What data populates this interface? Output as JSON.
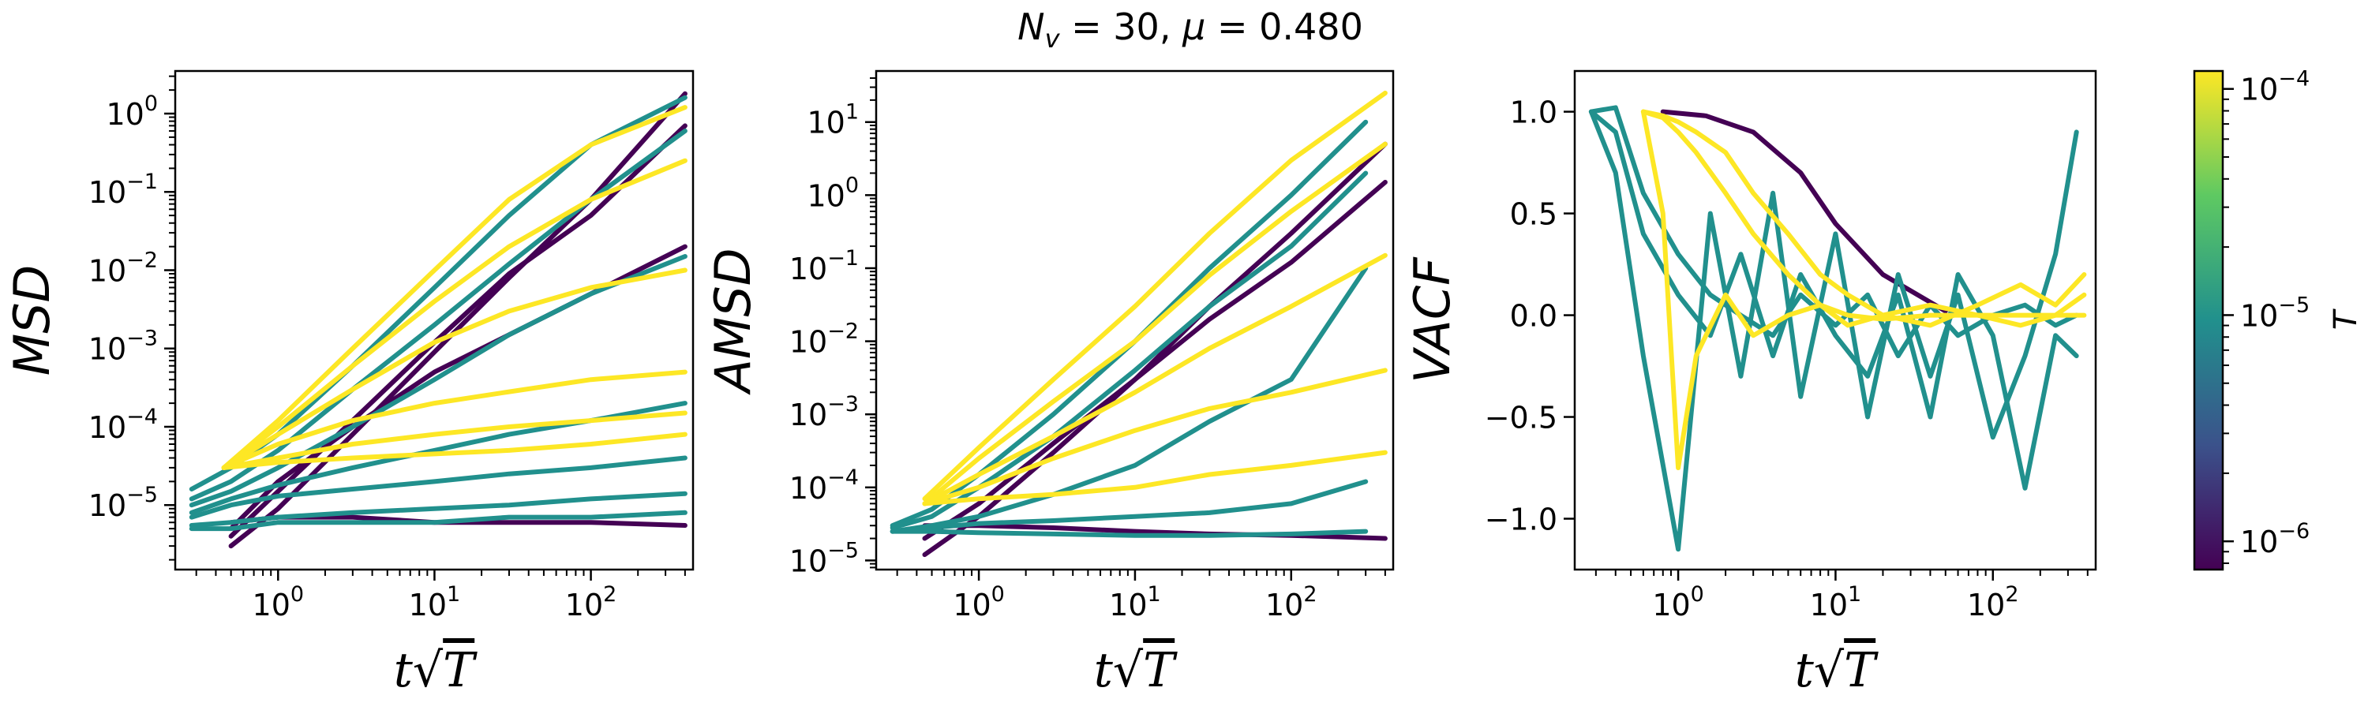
{
  "suptitle": {
    "n_symbol": "N",
    "n_sub": "v",
    "n_value": " = 30, ",
    "mu_symbol": "μ",
    "mu_value": " = 0.480"
  },
  "colors": {
    "dark_purple": "#440154",
    "teal": "#21908d",
    "teal_light": "#1f9e89",
    "yellow": "#fde725",
    "yellow_green": "#d8e219"
  },
  "chart_data": [
    {
      "type": "line",
      "panel": "msd",
      "ylabel": "MSD",
      "xlabel_t": "t",
      "xlabel_T": "T",
      "xscale": "log",
      "yscale": "log",
      "xlim": [
        0.22,
        450
      ],
      "ylim": [
        1.5e-06,
        3.5
      ],
      "x_ticks": [
        1,
        10,
        100
      ],
      "x_tick_base": "10",
      "x_tick_exps": [
        "0",
        "1",
        "2"
      ],
      "y_ticks": [
        1e-05,
        0.0001,
        0.001,
        0.01,
        0.1,
        1
      ],
      "y_tick_base": "10",
      "y_tick_exps": [
        "−5",
        "−4",
        "−3",
        "−2",
        "−1",
        "0"
      ],
      "series_groups": [
        {
          "color": "#440154",
          "x": [
            0.5,
            1,
            3,
            10,
            30,
            100,
            400
          ],
          "lines": [
            [
              3e-06,
              9e-06,
              8e-05,
              0.0009,
              0.008,
              0.08,
              1.8
            ],
            [
              4e-06,
              1.5e-05,
              0.00012,
              0.0012,
              0.009,
              0.05,
              0.7
            ],
            [
              5e-06,
              2e-05,
              0.0001,
              0.0005,
              0.0015,
              0.005,
              0.02
            ],
            [
              6e-06,
              7e-06,
              7e-06,
              6e-06,
              6e-06,
              6e-06,
              5.5e-06
            ]
          ]
        },
        {
          "color": "#21908d",
          "x": [
            0.28,
            0.5,
            1,
            3,
            10,
            30,
            100,
            400
          ],
          "lines": [
            [
              1.6e-05,
              3e-05,
              8e-05,
              0.0006,
              0.006,
              0.05,
              0.4,
              1.6
            ],
            [
              1.2e-05,
              2e-05,
              5e-05,
              0.0003,
              0.002,
              0.012,
              0.08,
              0.6
            ],
            [
              1e-05,
              1.5e-05,
              3e-05,
              0.0001,
              0.0004,
              0.0015,
              0.005,
              0.015
            ],
            [
              8e-06,
              1.2e-05,
              1.8e-05,
              3e-05,
              5e-05,
              8e-05,
              0.00012,
              0.0002
            ],
            [
              7e-06,
              1e-05,
              1.3e-05,
              1.6e-05,
              2e-05,
              2.5e-05,
              3e-05,
              4e-05
            ],
            [
              5.5e-06,
              6e-06,
              7e-06,
              8e-06,
              9e-06,
              1e-05,
              1.2e-05,
              1.4e-05
            ],
            [
              5e-06,
              5e-06,
              6e-06,
              6e-06,
              6e-06,
              7e-06,
              7e-06,
              8e-06
            ]
          ]
        },
        {
          "color": "#fde725",
          "x": [
            0.45,
            1,
            3,
            10,
            30,
            100,
            400
          ],
          "lines": [
            [
              3e-05,
              0.00012,
              0.001,
              0.01,
              0.08,
              0.4,
              1.2
            ],
            [
              3e-05,
              0.0001,
              0.0006,
              0.004,
              0.02,
              0.08,
              0.25
            ],
            [
              3e-05,
              8e-05,
              0.0003,
              0.0012,
              0.003,
              0.006,
              0.01
            ],
            [
              3e-05,
              6e-05,
              0.00012,
              0.0002,
              0.00028,
              0.0004,
              0.0005
            ],
            [
              3e-05,
              4e-05,
              6e-05,
              8e-05,
              0.0001,
              0.00012,
              0.00015
            ],
            [
              3e-05,
              3.5e-05,
              4e-05,
              4.5e-05,
              5e-05,
              6e-05,
              8e-05
            ]
          ]
        }
      ]
    },
    {
      "type": "line",
      "panel": "amsd",
      "ylabel": "AMSD",
      "xlabel_t": "t",
      "xlabel_T": "T",
      "xscale": "log",
      "yscale": "log",
      "xlim": [
        0.22,
        450
      ],
      "ylim": [
        7.5e-06,
        50
      ],
      "x_ticks": [
        1,
        10,
        100
      ],
      "x_tick_base": "10",
      "x_tick_exps": [
        "0",
        "1",
        "2"
      ],
      "y_ticks": [
        1e-05,
        0.0001,
        0.001,
        0.01,
        0.1,
        1,
        10
      ],
      "y_tick_base": "10",
      "y_tick_exps": [
        "−5",
        "−4",
        "−3",
        "−2",
        "−1",
        "0",
        "1"
      ],
      "series_groups": [
        {
          "color": "#440154",
          "x": [
            0.45,
            1,
            3,
            10,
            30,
            100,
            400
          ],
          "lines": [
            [
              1.2e-05,
              4e-05,
              0.0003,
              0.003,
              0.03,
              0.3,
              5
            ],
            [
              2e-05,
              6e-05,
              0.0004,
              0.003,
              0.02,
              0.12,
              1.5
            ],
            [
              3e-05,
              3e-05,
              2.8e-05,
              2.5e-05,
              2.3e-05,
              2.2e-05,
              2e-05
            ]
          ]
        },
        {
          "color": "#21908d",
          "x": [
            0.28,
            0.5,
            1,
            3,
            10,
            30,
            100,
            300
          ],
          "lines": [
            [
              3e-05,
              5e-05,
              0.00015,
              0.001,
              0.01,
              0.1,
              1,
              10
            ],
            [
              2.8e-05,
              4e-05,
              0.0001,
              0.0005,
              0.004,
              0.03,
              0.2,
              2
            ],
            [
              2.5e-05,
              3e-05,
              4e-05,
              8e-05,
              0.0002,
              0.0008,
              0.003,
              0.1
            ],
            [
              2.5e-05,
              2.8e-05,
              3.2e-05,
              3.5e-05,
              4e-05,
              4.5e-05,
              6e-05,
              0.00012
            ],
            [
              2.5e-05,
              2.5e-05,
              2.4e-05,
              2.3e-05,
              2.2e-05,
              2.2e-05,
              2.3e-05,
              2.5e-05
            ]
          ]
        },
        {
          "color": "#fde725",
          "x": [
            0.45,
            1,
            3,
            10,
            30,
            100,
            400
          ],
          "lines": [
            [
              7e-05,
              0.00035,
              0.003,
              0.03,
              0.3,
              3,
              25
            ],
            [
              6e-05,
              0.00025,
              0.0015,
              0.01,
              0.08,
              0.6,
              5
            ],
            [
              6e-05,
              0.00015,
              0.0005,
              0.002,
              0.008,
              0.03,
              0.15
            ],
            [
              6e-05,
              0.0001,
              0.00025,
              0.0006,
              0.0012,
              0.002,
              0.004
            ],
            [
              6e-05,
              7e-05,
              8e-05,
              0.0001,
              0.00015,
              0.0002,
              0.0003
            ]
          ]
        }
      ]
    },
    {
      "type": "line",
      "panel": "vacf",
      "ylabel": "VACF",
      "xlabel_t": "t",
      "xlabel_T": "T",
      "xscale": "log",
      "yscale": "linear",
      "xlim": [
        0.22,
        450
      ],
      "ylim": [
        -1.25,
        1.2
      ],
      "x_ticks": [
        1,
        10,
        100
      ],
      "x_tick_base": "10",
      "x_tick_exps": [
        "0",
        "1",
        "2"
      ],
      "y_ticks": [
        -1.0,
        -0.5,
        0.0,
        0.5,
        1.0
      ],
      "y_tick_labels": [
        "−1.0",
        "−0.5",
        "0.0",
        "0.5",
        "1.0"
      ],
      "series_groups": [
        {
          "color": "#440154",
          "x": [
            0.8,
            1.5,
            3,
            6,
            10,
            20,
            50
          ],
          "lines": [
            [
              1,
              0.98,
              0.9,
              0.7,
              0.45,
              0.2,
              0.02
            ]
          ]
        },
        {
          "color": "#21908d",
          "x": [
            0.28,
            0.4,
            0.6,
            1,
            1.6,
            2.5,
            4,
            6,
            10,
            16,
            25,
            40,
            60,
            100,
            160,
            250,
            340
          ],
          "lines": [
            [
              1,
              0.7,
              -0.2,
              -1.15,
              0.5,
              -0.3,
              0.6,
              -0.4,
              0.4,
              -0.5,
              0.2,
              -0.3,
              0.1,
              -0.6,
              -0.2,
              0.3,
              0.9
            ],
            [
              1,
              0.9,
              0.4,
              0.1,
              -0.1,
              0.3,
              -0.2,
              0.2,
              -0.1,
              -0.3,
              0.1,
              -0.5,
              0.2,
              -0.1,
              -0.85,
              -0.1,
              -0.2
            ],
            [
              1,
              1.02,
              0.6,
              0.3,
              0.1,
              0.0,
              -0.1,
              0.1,
              -0.05,
              0.1,
              -0.2,
              0.05,
              -0.1,
              0.0,
              0.05,
              -0.05,
              0.0
            ]
          ]
        },
        {
          "color": "#fde725",
          "x": [
            0.6,
            0.8,
            1,
            1.3,
            2,
            3,
            5,
            8,
            12,
            20,
            40,
            80,
            150,
            250,
            380
          ],
          "lines": [
            [
              1,
              0.5,
              -0.75,
              -0.2,
              0.1,
              -0.1,
              0.0,
              0.05,
              -0.05,
              0.0,
              0.05,
              0.0,
              -0.05,
              0.0,
              0.1
            ],
            [
              1,
              0.98,
              0.95,
              0.9,
              0.8,
              0.6,
              0.4,
              0.2,
              0.1,
              0.0,
              -0.05,
              0.05,
              0.15,
              0.05,
              0.2
            ],
            [
              1,
              0.97,
              0.9,
              0.8,
              0.6,
              0.4,
              0.2,
              0.05,
              0.0,
              -0.02,
              0.0,
              0.0,
              0.0,
              0.0,
              0.0
            ]
          ]
        }
      ]
    }
  ],
  "colorbar": {
    "label": "T",
    "scale": "log",
    "range": [
      7.5e-07,
      0.00012
    ],
    "ticks": [
      1e-06,
      1e-05,
      0.0001
    ],
    "tick_base": "10",
    "tick_exps": [
      "−6",
      "−5",
      "−4"
    ],
    "stops": [
      "#440154",
      "#3b528b",
      "#21908d",
      "#5ec962",
      "#fde725"
    ]
  }
}
